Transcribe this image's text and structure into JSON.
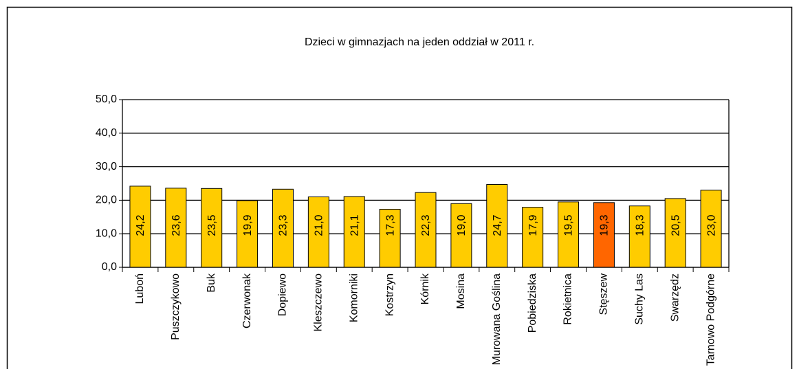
{
  "chart_data": {
    "type": "bar",
    "title": "Dzieci w  gimnazjach na jeden oddział w  2011 r.",
    "categories": [
      "Luboń",
      "Puszczykowo",
      "Buk",
      "Czerwonak",
      "Dopiewo",
      "Kleszczewo",
      "Komorniki",
      "Kostrzyn",
      "Kórnik",
      "Mosina",
      "Murowana Goślina",
      "Pobiedziska",
      "Rokietnica",
      "Stęszew",
      "Suchy Las",
      "Swarzędz",
      "Tarnowo Podgórne"
    ],
    "values": [
      24.2,
      23.6,
      23.5,
      19.9,
      23.3,
      21.0,
      21.1,
      17.3,
      22.3,
      19.0,
      24.7,
      17.9,
      19.5,
      19.3,
      18.3,
      20.5,
      23.0
    ],
    "value_labels": [
      "24,2",
      "23,6",
      "23,5",
      "19,9",
      "23,3",
      "21,0",
      "21,1",
      "17,3",
      "22,3",
      "19,0",
      "24,7",
      "17,9",
      "19,5",
      "19,3",
      "18,3",
      "20,5",
      "23,0"
    ],
    "colors": [
      "#ffcc00",
      "#ffcc00",
      "#ffcc00",
      "#ffcc00",
      "#ffcc00",
      "#ffcc00",
      "#ffcc00",
      "#ffcc00",
      "#ffcc00",
      "#ffcc00",
      "#ffcc00",
      "#ffcc00",
      "#ffcc00",
      "#ff6600",
      "#ffcc00",
      "#ffcc00",
      "#ffcc00"
    ],
    "ylim": [
      0,
      50
    ],
    "yticks": [
      {
        "value": 0,
        "label": "0,0"
      },
      {
        "value": 10,
        "label": "10,0"
      },
      {
        "value": 20,
        "label": "20,0"
      },
      {
        "value": 30,
        "label": "30,0"
      },
      {
        "value": 40,
        "label": "40,0"
      },
      {
        "value": 50,
        "label": "50,0"
      }
    ],
    "grid": true
  }
}
